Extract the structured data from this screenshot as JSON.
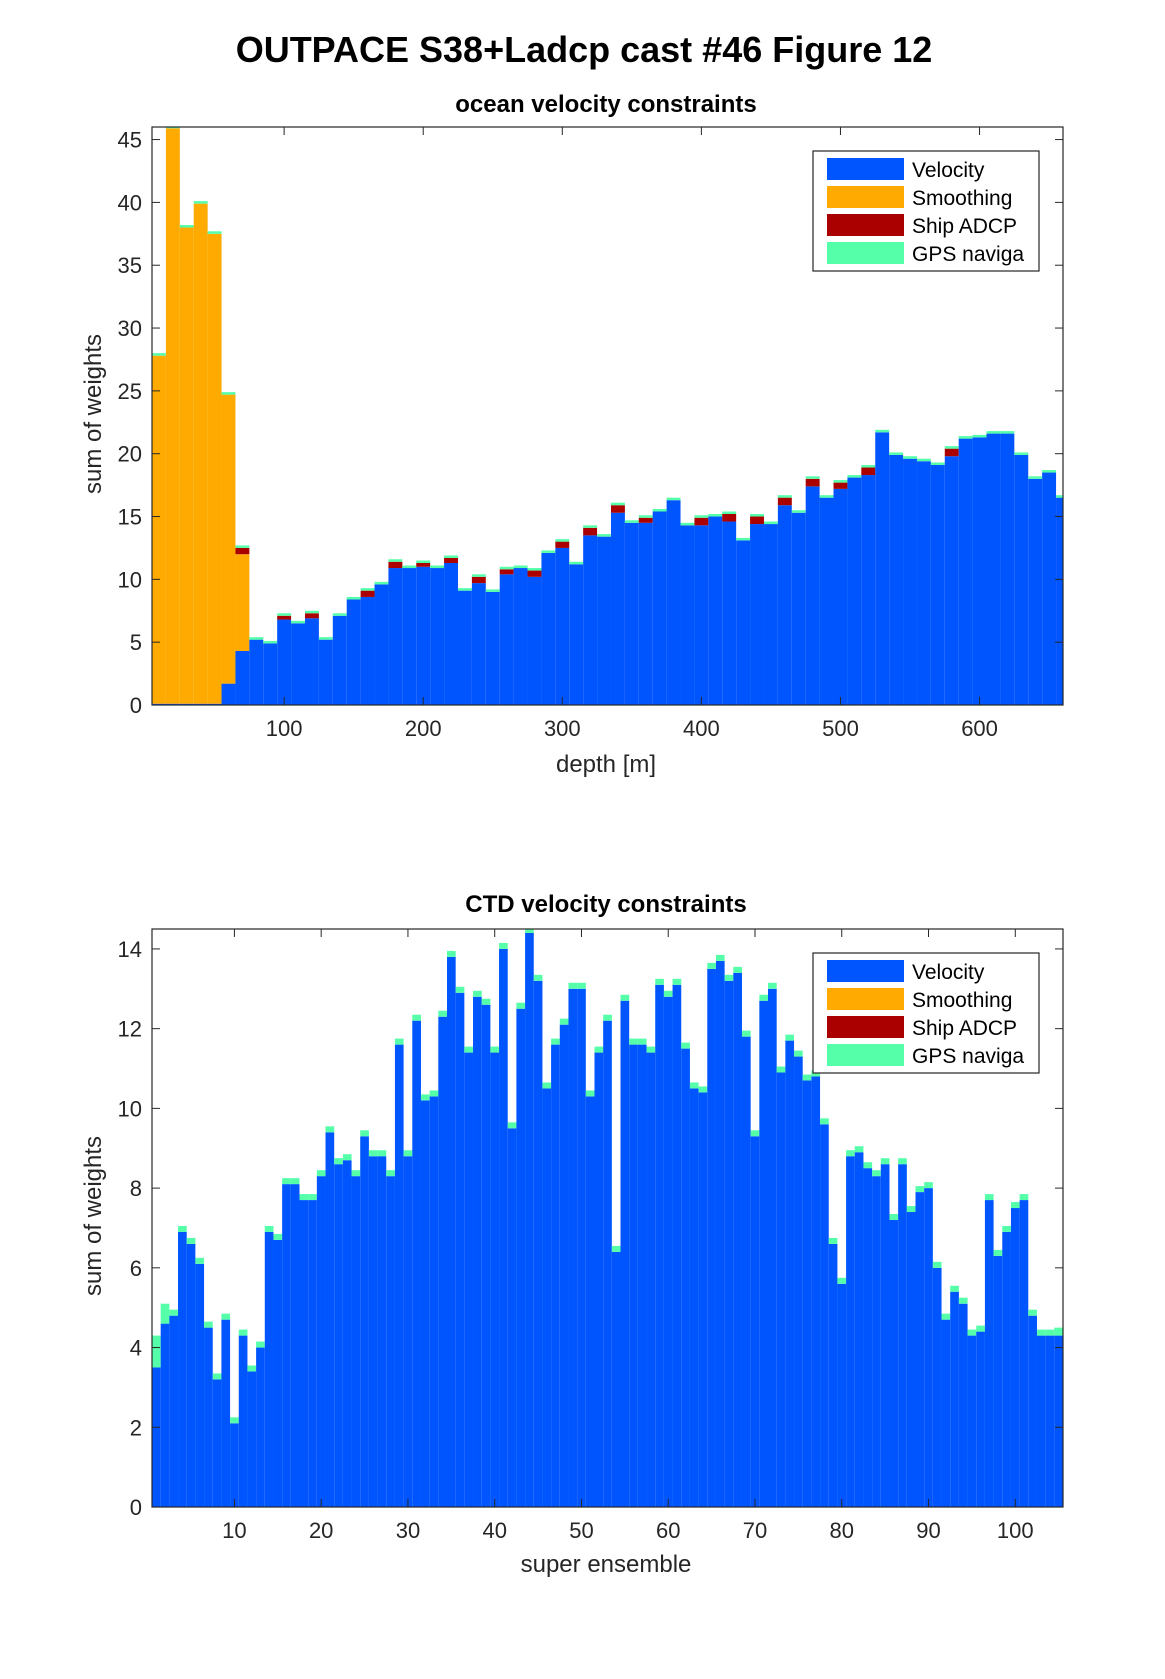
{
  "figure": {
    "title": "OUTPACE S38+Ladcp cast #46  Figure 12"
  },
  "colors": {
    "velocity": "#0055ff",
    "smoothing": "#ffaa00",
    "ship_adcp": "#aa0000",
    "gps": "#55ffaa",
    "axis": "#262626"
  },
  "chart_data": [
    {
      "type": "bar",
      "stacked": true,
      "title": "ocean velocity constraints",
      "xlabel": "depth [m]",
      "ylabel": "sum of weights",
      "xlim": [
        5,
        660
      ],
      "ylim": [
        0,
        46
      ],
      "xticks": [
        100,
        200,
        300,
        400,
        500,
        600
      ],
      "yticks": [
        0,
        5,
        10,
        15,
        20,
        25,
        30,
        35,
        40,
        45
      ],
      "legend": {
        "position": "top-right",
        "entries": [
          "Velocity",
          "Smoothing",
          "Ship ADCP",
          "GPS naviga"
        ]
      },
      "bin_width": 10,
      "x": [
        10,
        20,
        30,
        40,
        50,
        60,
        70,
        80,
        90,
        100,
        110,
        120,
        130,
        140,
        150,
        160,
        170,
        180,
        190,
        200,
        210,
        220,
        230,
        240,
        250,
        260,
        270,
        280,
        290,
        300,
        310,
        320,
        330,
        340,
        350,
        360,
        370,
        380,
        390,
        400,
        410,
        420,
        430,
        440,
        450,
        460,
        470,
        480,
        490,
        500,
        510,
        520,
        530,
        540,
        550,
        560,
        570,
        580,
        590,
        600,
        610,
        620,
        630,
        640,
        650,
        660
      ],
      "series": [
        {
          "name": "Velocity",
          "values": [
            0.1,
            0.1,
            0.1,
            0.1,
            0.1,
            1.7,
            4.3,
            5.2,
            4.9,
            6.8,
            6.5,
            6.9,
            5.2,
            7.1,
            8.4,
            8.6,
            9.6,
            10.9,
            10.9,
            11.0,
            10.9,
            11.3,
            9.1,
            9.7,
            9.0,
            10.4,
            10.9,
            10.2,
            12.1,
            12.5,
            11.2,
            13.5,
            13.4,
            15.3,
            14.5,
            14.5,
            15.4,
            16.3,
            14.3,
            14.3,
            15.0,
            14.6,
            13.1,
            14.4,
            14.4,
            15.9,
            15.3,
            17.4,
            16.5,
            17.2,
            18.1,
            18.3,
            21.7,
            19.9,
            19.6,
            19.4,
            19.1,
            19.8,
            21.2,
            21.3,
            21.6,
            21.6,
            19.9,
            18.0,
            18.5,
            16.5
          ],
          "smooth_vals_note": "",
          "dummy": null
        }
      ]
    }
  ]
}
